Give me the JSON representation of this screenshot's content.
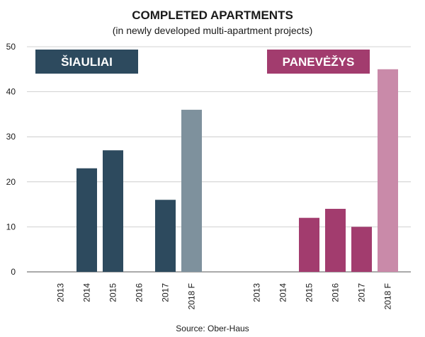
{
  "chart_data": {
    "type": "bar",
    "title": "COMPLETED APARTMENTS",
    "subtitle": "(in newly developed multi-apartment projects)",
    "source": "Source: Ober-Haus",
    "ylim": [
      0,
      50
    ],
    "yticks": [
      0,
      10,
      20,
      30,
      40,
      50
    ],
    "grid": true,
    "groups": [
      {
        "name": "ŠIAULIAI",
        "color": "#2d4a5e",
        "forecast_color": "#7e919d",
        "categories": [
          "2013",
          "2014",
          "2015",
          "2016",
          "2017",
          "2018 F"
        ],
        "values": [
          0,
          23,
          27,
          0,
          16,
          36
        ]
      },
      {
        "name": "PANEVĖŽYS",
        "color": "#a23c6e",
        "forecast_color": "#c98aa9",
        "categories": [
          "2013",
          "2014",
          "2015",
          "2016",
          "2017",
          "2018 F"
        ],
        "values": [
          0,
          0,
          12,
          14,
          10,
          45
        ]
      }
    ]
  }
}
